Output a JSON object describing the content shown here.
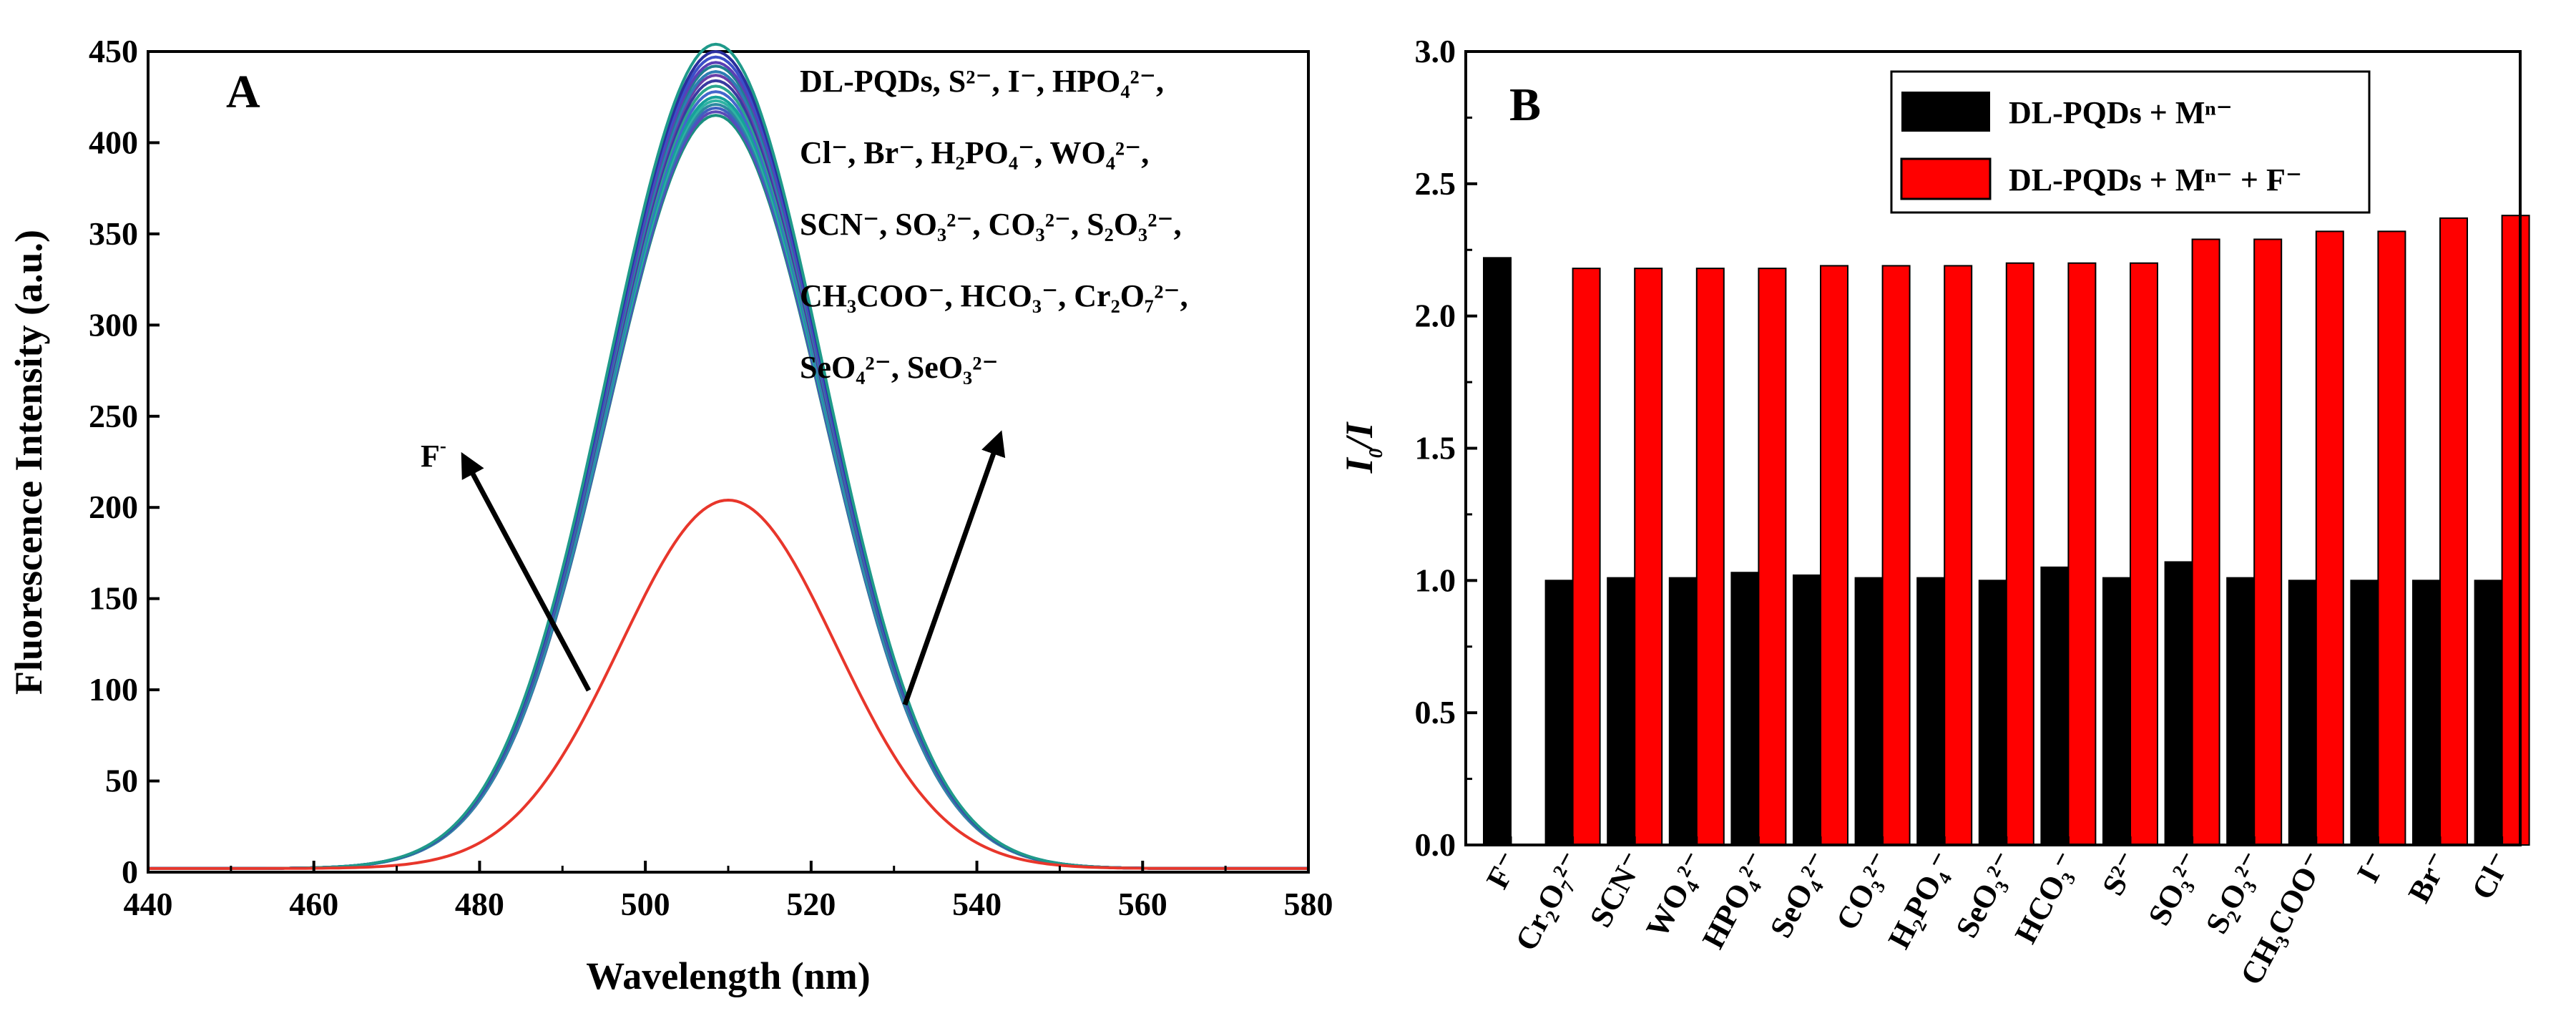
{
  "panels": [
    {
      "panel_label": "A",
      "chart_data": {
        "type": "line",
        "title": "",
        "xlabel": "Wavelength (nm)",
        "ylabel": "Fluorescence Intensity (a.u.)",
        "xlim": [
          440,
          580
        ],
        "ylim": [
          0,
          450
        ],
        "xticks": [
          440,
          460,
          480,
          500,
          520,
          540,
          560,
          580
        ],
        "yticks": [
          0,
          50,
          100,
          150,
          200,
          250,
          300,
          350,
          400,
          450
        ],
        "gaussian_sigma_nm": 13,
        "series": [
          {
            "name": "F⁻",
            "color": "#e8362b",
            "peak_nm": 510,
            "peak": 202
          },
          {
            "name": "S²⁻",
            "color": "#1f9a8a",
            "peak_nm": 508.5,
            "peak": 452
          },
          {
            "name": "I⁻",
            "color": "#2a2f9e",
            "peak_nm": 508.5,
            "peak": 448
          },
          {
            "name": "HPO₄²⁻",
            "color": "#3b4fc8",
            "peak_nm": 508.5,
            "peak": 445
          },
          {
            "name": "Cl⁻",
            "color": "#5b3fb5",
            "peak_nm": 508.5,
            "peak": 442
          },
          {
            "name": "Br⁻",
            "color": "#1f7f8f",
            "peak_nm": 508.5,
            "peak": 440
          },
          {
            "name": "H₂PO₄⁻",
            "color": "#2d7db3",
            "peak_nm": 508.5,
            "peak": 437
          },
          {
            "name": "WO₄²⁻",
            "color": "#6a3fa8",
            "peak_nm": 508.5,
            "peak": 435
          },
          {
            "name": "SCN⁻",
            "color": "#3a3aa0",
            "peak_nm": 508.5,
            "peak": 432
          },
          {
            "name": "SO₃²⁻",
            "color": "#2aa58e",
            "peak_nm": 508.5,
            "peak": 429
          },
          {
            "name": "CO₃²⁻",
            "color": "#4466cc",
            "peak_nm": 508.5,
            "peak": 426
          },
          {
            "name": "S₂O₃²⁻",
            "color": "#16a19a",
            "peak_nm": 508.5,
            "peak": 423
          },
          {
            "name": "CH₃COO⁻",
            "color": "#2fb3a3",
            "peak_nm": 508.5,
            "peak": 421
          },
          {
            "name": "HCO₃⁻",
            "color": "#2c89a0",
            "peak_nm": 508.5,
            "peak": 419
          },
          {
            "name": "Cr₂O₇²⁻",
            "color": "#3f5fbf",
            "peak_nm": 508.5,
            "peak": 417
          },
          {
            "name": "SeO₄²⁻",
            "color": "#5a4ab8",
            "peak_nm": 508.5,
            "peak": 415
          },
          {
            "name": "SeO₃²⁻",
            "color": "#1a8f7f",
            "peak_nm": 508.5,
            "peak": 413
          }
        ],
        "annotations": [
          {
            "text": "F",
            "sup": "-"
          },
          {
            "text": "DL-PQDs, S²⁻, I⁻,  HPO₄²⁻,"
          },
          {
            "text": "Cl⁻, Br⁻,  H₂PO₄⁻, WO₄²⁻,"
          },
          {
            "text": "SCN⁻, SO₃²⁻, CO₃²⁻, S₂O₃²⁻,"
          },
          {
            "text": "CH₃COO⁻, HCO₃⁻, Cr₂O₇²⁻,"
          },
          {
            "text": "SeO₄²⁻, SeO₃²⁻"
          }
        ]
      }
    },
    {
      "panel_label": "B",
      "chart_data": {
        "type": "bar",
        "title": "",
        "xlabel": "",
        "ylabel": "I0/I",
        "ylabel_main": "I",
        "ylabel_sub": "0",
        "ylabel_rest": "/I",
        "ylim": [
          0,
          3.0
        ],
        "yticks": [
          "0.0",
          "0.5",
          "1.0",
          "1.5",
          "2.0",
          "2.5",
          "3.0"
        ],
        "categories": [
          "F⁻",
          "Cr₂O₇²⁻",
          "SCN⁻",
          "WO₄²⁻",
          "HPO₄²⁻",
          "SeO₄²⁻",
          "CO₃²⁻",
          "H₂PO₄⁻",
          "SeO₃²⁻",
          "HCO₃⁻",
          "S²⁻",
          "SO₃²⁻",
          "S₂O₃²⁻",
          "CH₃COO⁻",
          "I⁻",
          "Br⁻",
          "Cl⁻"
        ],
        "series": [
          {
            "name": "DL-PQDs + Mⁿ⁻",
            "color": "#000000",
            "values": [
              2.22,
              1.0,
              1.01,
              1.01,
              1.03,
              1.02,
              1.01,
              1.01,
              1.0,
              1.05,
              1.01,
              1.07,
              1.01,
              1.0,
              1.0,
              1.0,
              1.0
            ]
          },
          {
            "name": "DL-PQDs + Mⁿ⁻ + F⁻",
            "color": "#ff0000",
            "values": [
              null,
              2.18,
              2.18,
              2.18,
              2.18,
              2.19,
              2.19,
              2.19,
              2.2,
              2.2,
              2.2,
              2.29,
              2.29,
              2.32,
              2.32,
              2.37,
              2.38
            ]
          }
        ],
        "legend_position": "top-center"
      }
    }
  ]
}
